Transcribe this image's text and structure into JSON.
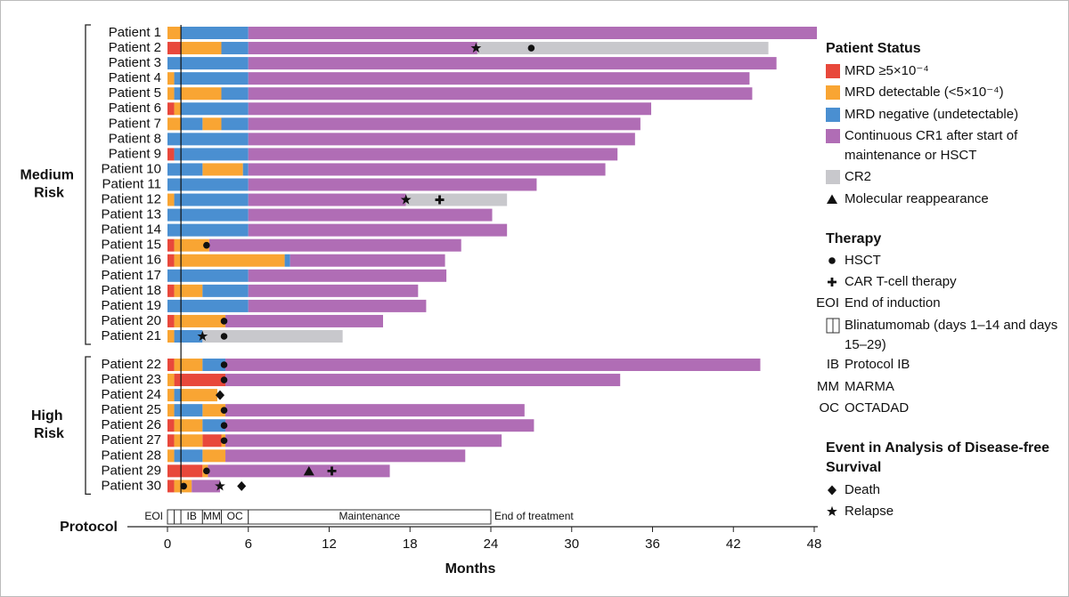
{
  "chart_data": {
    "type": "swimmer",
    "x_label": "Months",
    "xlim": [
      0,
      48
    ],
    "xticks": [
      0,
      6,
      12,
      18,
      24,
      30,
      36,
      42,
      48
    ],
    "groups": [
      {
        "label": "Medium Risk",
        "categories": [
          "Patient 1",
          "Patient 2",
          "Patient 3",
          "Patient 4",
          "Patient 5",
          "Patient 6",
          "Patient 7",
          "Patient 8",
          "Patient 9",
          "Patient 10",
          "Patient 11",
          "Patient 12",
          "Patient 13",
          "Patient 14",
          "Patient 15",
          "Patient 16",
          "Patient 17",
          "Patient 18",
          "Patient 19",
          "Patient 20",
          "Patient 21"
        ]
      },
      {
        "label": "High Risk",
        "categories": [
          "Patient 22",
          "Patient 23",
          "Patient 24",
          "Patient 25",
          "Patient 26",
          "Patient 27",
          "Patient 28",
          "Patient 29",
          "Patient 30"
        ]
      }
    ],
    "legend_titles": [
      "Patient Status",
      "Therapy",
      "Event in Analysis of Disease-free Survival"
    ],
    "series": [
      {
        "name": "MRD ≥5×10⁻⁴",
        "color": "#e8483b",
        "values": [
          [],
          [
            [
              0,
              1
            ]
          ],
          [],
          [],
          [],
          [
            [
              0,
              0.5
            ]
          ],
          [],
          [],
          [
            [
              0,
              0.5
            ]
          ],
          [],
          [],
          [],
          [],
          [],
          [
            [
              0,
              0.5
            ]
          ],
          [
            [
              0,
              0.5
            ]
          ],
          [],
          [
            [
              0,
              0.5
            ]
          ],
          [],
          [
            [
              0,
              0.5
            ]
          ],
          [],
          [
            [
              0,
              0.5
            ]
          ],
          [
            [
              0.5,
              4.3
            ]
          ],
          [],
          [],
          [
            [
              0,
              0.5
            ]
          ],
          [
            [
              0,
              0.5
            ],
            [
              2.6,
              4
            ]
          ],
          [],
          [
            [
              0,
              2.6
            ]
          ],
          [
            [
              0,
              0.5
            ]
          ]
        ]
      },
      {
        "name": "MRD detectable (<5×10⁻⁴)",
        "color": "#f9a533",
        "values": [
          [
            [
              0,
              1
            ]
          ],
          [
            [
              1,
              4
            ]
          ],
          [],
          [
            [
              0,
              0.5
            ]
          ],
          [
            [
              0,
              0.5
            ],
            [
              1,
              4
            ]
          ],
          [
            [
              0.5,
              1
            ]
          ],
          [
            [
              0,
              1
            ],
            [
              2.6,
              4
            ]
          ],
          [],
          [],
          [
            [
              2.6,
              5.6
            ]
          ],
          [],
          [
            [
              0,
              0.5
            ]
          ],
          [],
          [],
          [
            [
              0.5,
              3.1
            ]
          ],
          [
            [
              0.5,
              8.7
            ]
          ],
          [],
          [
            [
              0.5,
              2.6
            ]
          ],
          [],
          [
            [
              0.5,
              4.3
            ]
          ],
          [
            [
              0,
              0.5
            ]
          ],
          [
            [
              0.5,
              2.6
            ]
          ],
          [
            [
              0,
              0.5
            ]
          ],
          [
            [
              0,
              0.5
            ],
            [
              1,
              3.7
            ]
          ],
          [
            [
              0,
              0.5
            ],
            [
              2.6,
              4.3
            ]
          ],
          [
            [
              0.5,
              2.6
            ]
          ],
          [
            [
              0.5,
              2.6
            ],
            [
              4,
              4.3
            ]
          ],
          [
            [
              0,
              0.5
            ],
            [
              2.6,
              4.3
            ]
          ],
          [
            [
              2.6,
              3
            ]
          ],
          [
            [
              0.5,
              1.8
            ]
          ]
        ]
      },
      {
        "name": "MRD negative (undetectable)",
        "color": "#4a8fd1",
        "values": [
          [
            [
              1,
              6
            ]
          ],
          [
            [
              4,
              6
            ]
          ],
          [
            [
              0,
              6
            ]
          ],
          [
            [
              0.5,
              6
            ]
          ],
          [
            [
              0.5,
              1
            ],
            [
              4,
              6
            ]
          ],
          [
            [
              1,
              6
            ]
          ],
          [
            [
              1,
              2.6
            ],
            [
              4,
              6
            ]
          ],
          [
            [
              0,
              6
            ]
          ],
          [
            [
              0.5,
              6
            ]
          ],
          [
            [
              0,
              2.6
            ],
            [
              5.6,
              6
            ]
          ],
          [
            [
              0,
              6
            ]
          ],
          [
            [
              0.5,
              6
            ]
          ],
          [
            [
              0,
              6
            ]
          ],
          [
            [
              0,
              6
            ]
          ],
          [],
          [
            [
              8.7,
              9.1
            ]
          ],
          [
            [
              0,
              6
            ]
          ],
          [
            [
              2.6,
              6
            ]
          ],
          [
            [
              0,
              6
            ]
          ],
          [],
          [
            [
              0.5,
              2.6
            ]
          ],
          [
            [
              2.6,
              4.3
            ]
          ],
          [],
          [
            [
              0.5,
              1
            ]
          ],
          [
            [
              0.5,
              2.6
            ]
          ],
          [
            [
              2.6,
              4.3
            ]
          ],
          [],
          [
            [
              0.5,
              2.6
            ]
          ],
          [],
          []
        ]
      },
      {
        "name": "Continuous CR1 after start of maintenance or HSCT",
        "color": "#b06db5",
        "values": [
          [
            [
              6,
              48.2
            ]
          ],
          [
            [
              6,
              23
            ]
          ],
          [
            [
              6,
              45.2
            ]
          ],
          [
            [
              6,
              43.2
            ]
          ],
          [
            [
              6,
              43.4
            ]
          ],
          [
            [
              6,
              35.9
            ]
          ],
          [
            [
              6,
              35.1
            ]
          ],
          [
            [
              6,
              34.7
            ]
          ],
          [
            [
              6,
              33.4
            ]
          ],
          [
            [
              6,
              32.5
            ]
          ],
          [
            [
              6,
              27.4
            ]
          ],
          [
            [
              6,
              17.7
            ]
          ],
          [
            [
              6,
              24.1
            ]
          ],
          [
            [
              6,
              25.2
            ]
          ],
          [
            [
              3.1,
              21.8
            ]
          ],
          [
            [
              9.1,
              20.6
            ]
          ],
          [
            [
              6,
              20.7
            ]
          ],
          [
            [
              6,
              18.6
            ]
          ],
          [
            [
              6,
              19.2
            ]
          ],
          [
            [
              4.3,
              16
            ]
          ],
          [],
          [
            [
              4.3,
              44
            ]
          ],
          [
            [
              4.3,
              33.6
            ]
          ],
          [],
          [
            [
              4.3,
              26.5
            ]
          ],
          [
            [
              4.3,
              27.2
            ]
          ],
          [
            [
              4.3,
              24.8
            ]
          ],
          [
            [
              4.3,
              22.1
            ]
          ],
          [
            [
              3,
              16.5
            ]
          ],
          [
            [
              1.8,
              3.9
            ]
          ]
        ]
      },
      {
        "name": "CR2",
        "color": "#c8c8cc",
        "values": [
          [],
          [
            [
              23,
              44.6
            ]
          ],
          [],
          [],
          [],
          [],
          [],
          [],
          [],
          [],
          [],
          [
            [
              17.7,
              25.2
            ]
          ],
          [],
          [],
          [],
          [],
          [],
          [],
          [],
          [],
          [
            [
              2.6,
              13
            ]
          ],
          [],
          [],
          [],
          [],
          [],
          [],
          [],
          [],
          []
        ]
      }
    ],
    "markers": [
      {
        "name": "Molecular reappearance",
        "shape": "triangle",
        "values": [
          null,
          null,
          null,
          null,
          null,
          null,
          null,
          null,
          null,
          null,
          null,
          null,
          null,
          null,
          null,
          null,
          null,
          null,
          null,
          null,
          null,
          null,
          null,
          null,
          null,
          null,
          null,
          null,
          10.5,
          null
        ]
      },
      {
        "name": "HSCT",
        "shape": "circle",
        "values": [
          null,
          27,
          null,
          null,
          null,
          null,
          null,
          null,
          null,
          null,
          null,
          null,
          null,
          null,
          2.9,
          null,
          null,
          null,
          null,
          4.2,
          4.2,
          4.2,
          4.2,
          null,
          4.2,
          4.2,
          4.2,
          null,
          2.9,
          1.2
        ]
      },
      {
        "name": "CAR T-cell therapy",
        "shape": "plus",
        "values": [
          null,
          null,
          null,
          null,
          null,
          null,
          null,
          null,
          null,
          null,
          null,
          20.2,
          null,
          null,
          null,
          null,
          null,
          null,
          null,
          null,
          null,
          null,
          null,
          null,
          null,
          null,
          null,
          null,
          12.2,
          null
        ]
      },
      {
        "name": "Death",
        "shape": "diamond",
        "values": [
          null,
          null,
          null,
          null,
          null,
          null,
          null,
          null,
          null,
          null,
          null,
          null,
          null,
          null,
          null,
          null,
          null,
          null,
          null,
          null,
          null,
          null,
          null,
          3.9,
          null,
          null,
          null,
          null,
          null,
          5.5
        ]
      },
      {
        "name": "Relapse",
        "shape": "star",
        "values": [
          null,
          22.9,
          null,
          null,
          null,
          null,
          null,
          null,
          null,
          null,
          null,
          17.7,
          null,
          null,
          null,
          null,
          null,
          null,
          null,
          null,
          2.6,
          null,
          null,
          null,
          null,
          null,
          null,
          null,
          null,
          3.9
        ]
      }
    ],
    "abbreviations": [
      {
        "abbr": "EOI",
        "text": "End of induction"
      },
      {
        "text": "Blinatumomab (days 1–14 and days 15–29)"
      },
      {
        "abbr": "IB",
        "text": "Protocol IB"
      },
      {
        "abbr": "MM",
        "text": "MARMA"
      },
      {
        "abbr": "OC",
        "text": "OCTADAD"
      }
    ],
    "protocol": {
      "label": "Protocol",
      "eoi": "EOI",
      "end_label": "End of treatment",
      "phases": [
        {
          "start": 0,
          "end": 0.5
        },
        {
          "start": 0.5,
          "end": 1
        },
        {
          "label": "IB",
          "start": 1,
          "end": 2.6
        },
        {
          "label": "MM",
          "start": 2.6,
          "end": 4
        },
        {
          "label": "OC",
          "start": 4,
          "end": 6
        },
        {
          "label": "Maintenance",
          "start": 6,
          "end": 24
        }
      ]
    }
  }
}
